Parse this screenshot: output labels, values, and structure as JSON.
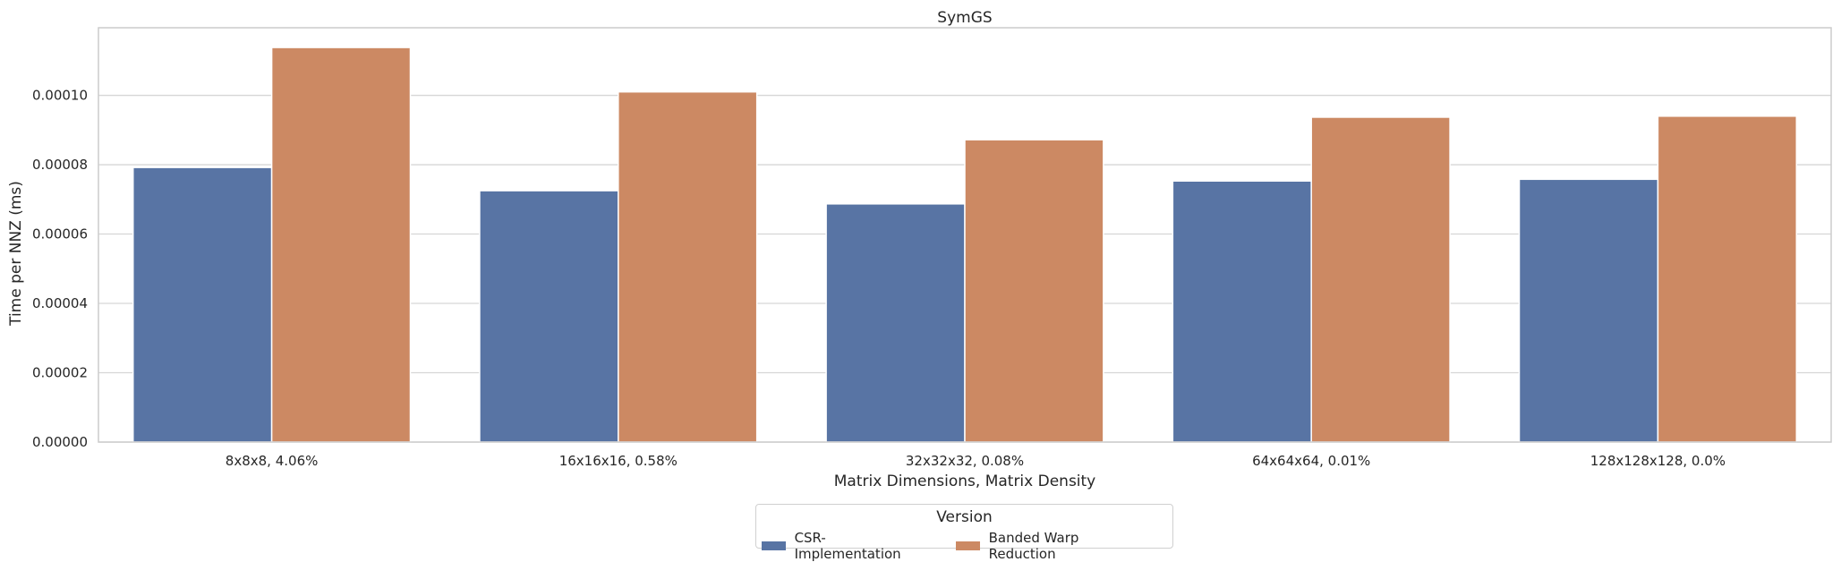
{
  "chart_data": {
    "type": "bar",
    "title": "SymGS",
    "xlabel": "Matrix Dimensions, Matrix Density",
    "ylabel": "Time per NNZ (ms)",
    "categories": [
      "8x8x8, 4.06%",
      "16x16x16, 0.58%",
      "32x32x32, 0.08%",
      "64x64x64, 0.01%",
      "128x128x128, 0.0%"
    ],
    "series": [
      {
        "name": "CSR-Implementation",
        "color": "#5874a4",
        "values": [
          7.92e-05,
          7.25e-05,
          6.87e-05,
          7.53e-05,
          7.58e-05
        ]
      },
      {
        "name": "Banded Warp Reduction",
        "color": "#cc8963",
        "values": [
          0.0001138,
          0.000101,
          8.72e-05,
          9.37e-05,
          9.4e-05
        ]
      }
    ],
    "ylim": [
      0,
      0.0001195
    ],
    "yticks": [
      "0.00000",
      "0.00002",
      "0.00004",
      "0.00006",
      "0.00008",
      "0.00010"
    ],
    "ytick_values": [
      0,
      2e-05,
      4e-05,
      6e-05,
      8e-05,
      0.0001
    ],
    "grid": true,
    "legend": {
      "title": "Version",
      "placement": "bottom-center"
    }
  }
}
